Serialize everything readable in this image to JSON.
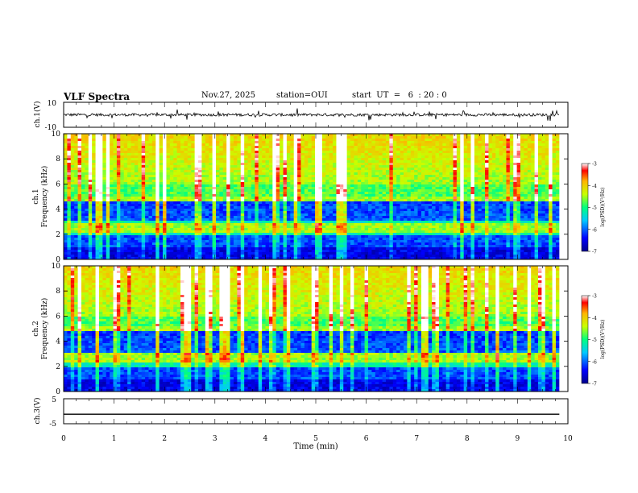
{
  "header": {
    "title": "VLF Spectra",
    "date": "Nov.27, 2025",
    "station": "station=OUI",
    "start": "start  UT  =   6  : 20 : 0"
  },
  "chart_data": [
    {
      "type": "line",
      "panel": "ch1-waveform",
      "ylabel": "ch.1(V)",
      "ylim": [
        -10,
        10
      ],
      "y_ticks": [
        "10",
        "-10"
      ],
      "baseline": 0,
      "x_range": [
        0,
        9.83
      ]
    },
    {
      "type": "heatmap",
      "panel": "ch1-spectrogram",
      "ylabel": "ch.1\nFrequency  (kHz)",
      "ylim": [
        0,
        10
      ],
      "y_ticks": [
        "0",
        "2",
        "4",
        "6",
        "8",
        "10"
      ],
      "x_range": [
        0,
        9.83
      ],
      "bands_khz": [
        2.3,
        2.6,
        4.8
      ],
      "colorbar": {
        "label": "log(PSD)(V²/Hz)",
        "range": [
          -7,
          -3
        ],
        "ticks": [
          "-3",
          "-4",
          "-5",
          "-6",
          "-7"
        ]
      }
    },
    {
      "type": "heatmap",
      "panel": "ch2-spectrogram",
      "ylabel": "ch.2\nFrequency  (kHz)",
      "ylim": [
        0,
        10
      ],
      "y_ticks": [
        "0",
        "2",
        "4",
        "6",
        "8",
        "10"
      ],
      "x_range": [
        0,
        9.83
      ],
      "bands_khz": [
        2.5,
        2.8,
        5.0
      ],
      "colorbar": {
        "label": "log(PSD)(V²/Hz)",
        "range": [
          -7,
          -3
        ],
        "ticks": [
          "-3",
          "-4",
          "-5",
          "-6",
          "-7"
        ]
      }
    },
    {
      "type": "line",
      "panel": "ch3-waveform",
      "ylabel": "ch.3(V)",
      "ylim": [
        -5,
        5
      ],
      "y_ticks": [
        "5",
        "-5"
      ],
      "baseline": -1.2,
      "x_range": [
        0,
        9.83
      ]
    }
  ],
  "xaxis": {
    "label": "Time  (min)",
    "range": [
      0,
      10
    ],
    "ticks": [
      "0",
      "1",
      "2",
      "3",
      "4",
      "5",
      "6",
      "7",
      "8",
      "9",
      "10"
    ]
  }
}
